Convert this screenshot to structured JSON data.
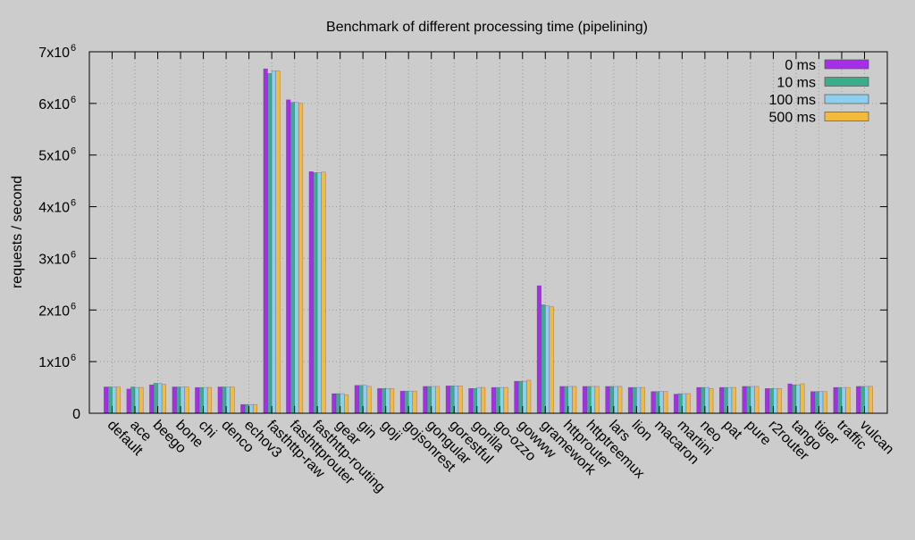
{
  "chart_data": {
    "type": "bar",
    "title": "Benchmark of different processing time (pipelining)",
    "xlabel": "",
    "ylabel": "requests / second",
    "ylim": [
      0,
      7000000
    ],
    "yticks": [
      {
        "value": 0,
        "label": "0"
      },
      {
        "value": 1000000,
        "label": "1x10",
        "exp": "6"
      },
      {
        "value": 2000000,
        "label": "2x10",
        "exp": "6"
      },
      {
        "value": 3000000,
        "label": "3x10",
        "exp": "6"
      },
      {
        "value": 4000000,
        "label": "4x10",
        "exp": "6"
      },
      {
        "value": 5000000,
        "label": "5x10",
        "exp": "6"
      },
      {
        "value": 6000000,
        "label": "6x10",
        "exp": "6"
      },
      {
        "value": 7000000,
        "label": "7x10",
        "exp": "6"
      }
    ],
    "grid": true,
    "legend_position": "top-right",
    "categories": [
      "default",
      "ace",
      "beego",
      "bone",
      "chi",
      "denco",
      "echov3",
      "fasthttp-raw",
      "fasthttprouter",
      "fasthttp-routing",
      "gear",
      "gin",
      "goji",
      "gojsonrest",
      "gongular",
      "gorestful",
      "gorilla",
      "go-ozzo",
      "gowww",
      "gramework",
      "httprouter",
      "httptreemux",
      "lars",
      "lion",
      "macaron",
      "martini",
      "neo",
      "pat",
      "pure",
      "r2router",
      "tango",
      "tiger",
      "traffic",
      "vulcan"
    ],
    "series": [
      {
        "name": "0 ms",
        "color": "#a62ee8",
        "values": [
          510000,
          470000,
          550000,
          510000,
          500000,
          510000,
          170000,
          6670000,
          6070000,
          4680000,
          380000,
          540000,
          480000,
          430000,
          520000,
          530000,
          480000,
          500000,
          620000,
          2470000,
          520000,
          520000,
          520000,
          500000,
          420000,
          370000,
          500000,
          500000,
          520000,
          480000,
          570000,
          420000,
          500000,
          520000
        ]
      },
      {
        "name": "10 ms",
        "color": "#3aae8a",
        "values": [
          510000,
          510000,
          580000,
          510000,
          500000,
          510000,
          170000,
          6580000,
          6020000,
          4660000,
          380000,
          540000,
          480000,
          430000,
          520000,
          530000,
          480000,
          500000,
          620000,
          2100000,
          520000,
          520000,
          520000,
          500000,
          420000,
          380000,
          500000,
          500000,
          520000,
          480000,
          550000,
          420000,
          500000,
          520000
        ]
      },
      {
        "name": "100 ms",
        "color": "#8ccfee",
        "values": [
          510000,
          500000,
          580000,
          510000,
          500000,
          510000,
          170000,
          6630000,
          6020000,
          4660000,
          380000,
          540000,
          480000,
          430000,
          520000,
          530000,
          500000,
          500000,
          620000,
          2080000,
          520000,
          520000,
          520000,
          500000,
          420000,
          380000,
          500000,
          500000,
          520000,
          480000,
          550000,
          420000,
          500000,
          520000
        ]
      },
      {
        "name": "500 ms",
        "color": "#f2bb3e",
        "values": [
          510000,
          500000,
          560000,
          510000,
          500000,
          510000,
          170000,
          6630000,
          6000000,
          4670000,
          360000,
          520000,
          480000,
          430000,
          520000,
          530000,
          500000,
          500000,
          640000,
          2060000,
          520000,
          520000,
          520000,
          500000,
          420000,
          380000,
          480000,
          500000,
          520000,
          480000,
          570000,
          420000,
          500000,
          520000
        ]
      }
    ]
  }
}
